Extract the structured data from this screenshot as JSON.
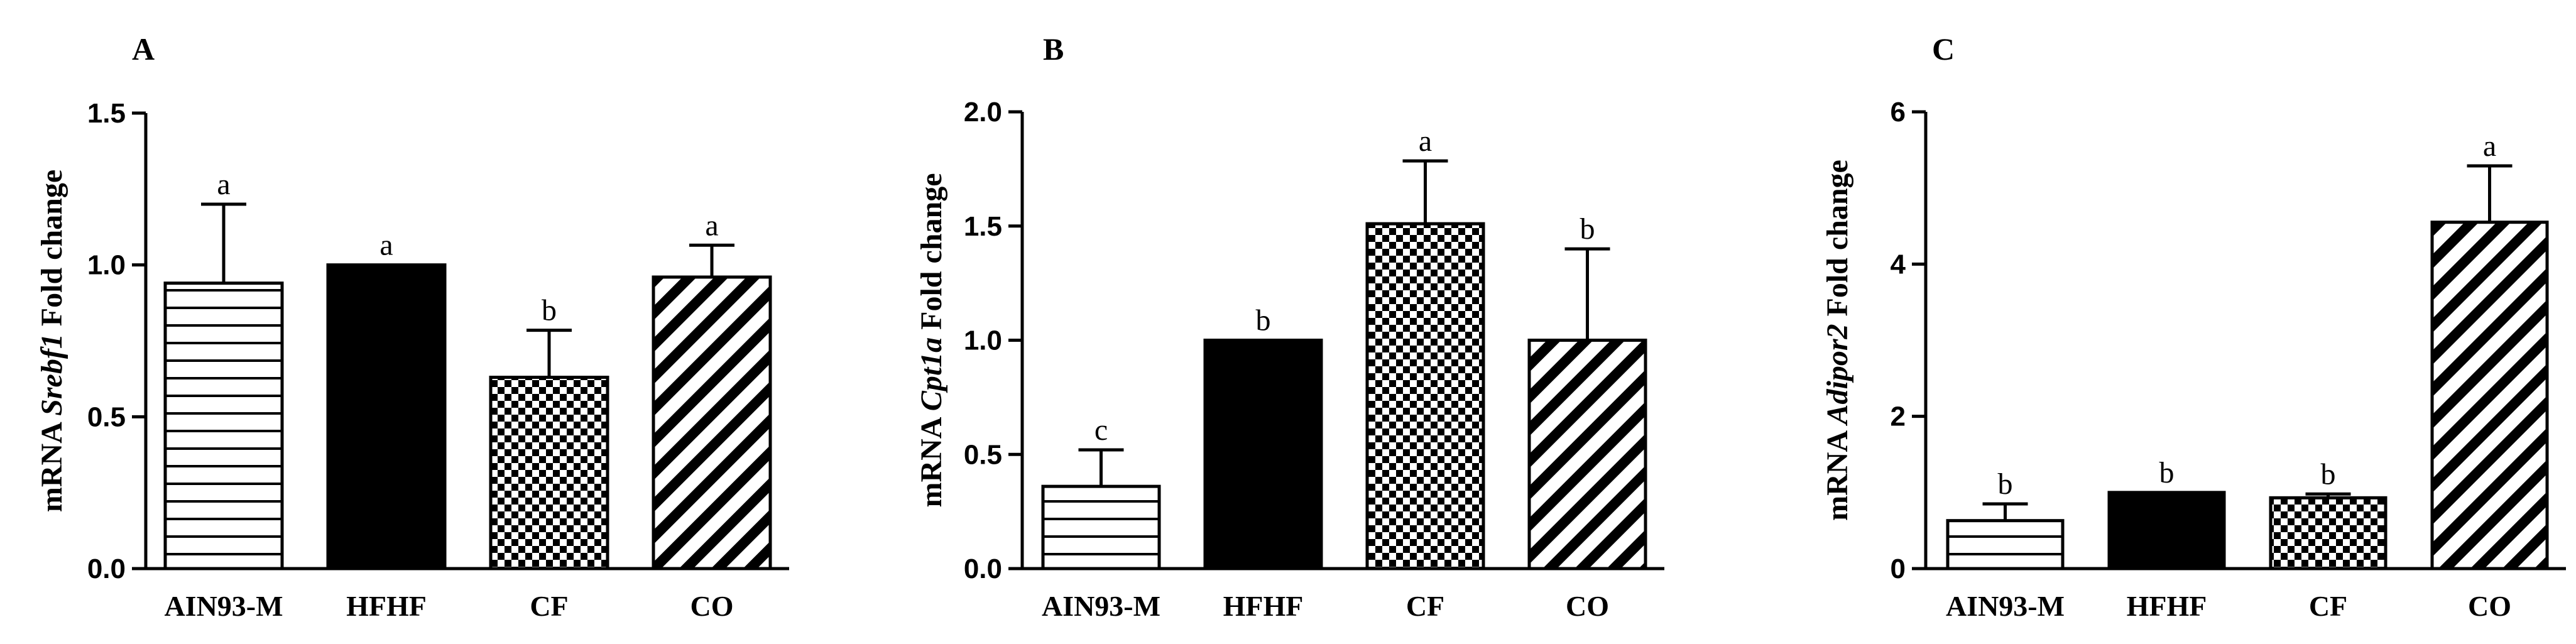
{
  "chart_data": [
    {
      "type": "bar",
      "panel_label": "A",
      "categories": [
        "AIN93-M",
        "HFHF",
        "CF",
        "CO"
      ],
      "values": [
        0.94,
        1.0,
        0.63,
        0.96
      ],
      "errors": [
        0.26,
        0.0,
        0.155,
        0.105
      ],
      "significance": [
        "a",
        "a",
        "b",
        "a"
      ],
      "patterns": [
        "hlines",
        "solid",
        "checker",
        "diag"
      ],
      "ylabel_prefix": "mRNA ",
      "ylabel_gene": "Srebf1",
      "ylabel_suffix": " Fold change",
      "ylim": [
        0,
        1.5
      ],
      "yticks": [
        0.0,
        0.5,
        1.0,
        1.5
      ],
      "ytick_labels": [
        "0.0",
        "0.5",
        "1.0",
        "1.5"
      ]
    },
    {
      "type": "bar",
      "panel_label": "B",
      "categories": [
        "AIN93-M",
        "HFHF",
        "CF",
        "CO"
      ],
      "values": [
        0.36,
        1.0,
        1.51,
        1.0
      ],
      "errors": [
        0.16,
        0.0,
        0.275,
        0.4
      ],
      "significance": [
        "c",
        "b",
        "a",
        "b"
      ],
      "patterns": [
        "hlines",
        "solid",
        "checker",
        "diag"
      ],
      "ylabel_prefix": "mRNA ",
      "ylabel_gene": "Cpt1a",
      "ylabel_suffix": " Fold change",
      "ylim": [
        0,
        2.0
      ],
      "yticks": [
        0.0,
        0.5,
        1.0,
        1.5,
        2.0
      ],
      "ytick_labels": [
        "0.0",
        "0.5",
        "1.0",
        "1.5",
        "2.0"
      ]
    },
    {
      "type": "bar",
      "panel_label": "C",
      "categories": [
        "AIN93-M",
        "HFHF",
        "CF",
        "CO"
      ],
      "values": [
        0.63,
        1.0,
        0.93,
        4.55
      ],
      "errors": [
        0.22,
        0.0,
        0.05,
        0.74
      ],
      "significance": [
        "b",
        "b",
        "b",
        "a"
      ],
      "patterns": [
        "hlines",
        "solid",
        "checker",
        "diag"
      ],
      "ylabel_prefix": "mRNA ",
      "ylabel_gene": "Adipor2",
      "ylabel_suffix": " Fold change",
      "ylim": [
        0,
        6
      ],
      "yticks": [
        0,
        2,
        4,
        6
      ],
      "ytick_labels": [
        "0",
        "2",
        "4",
        "6"
      ]
    }
  ]
}
